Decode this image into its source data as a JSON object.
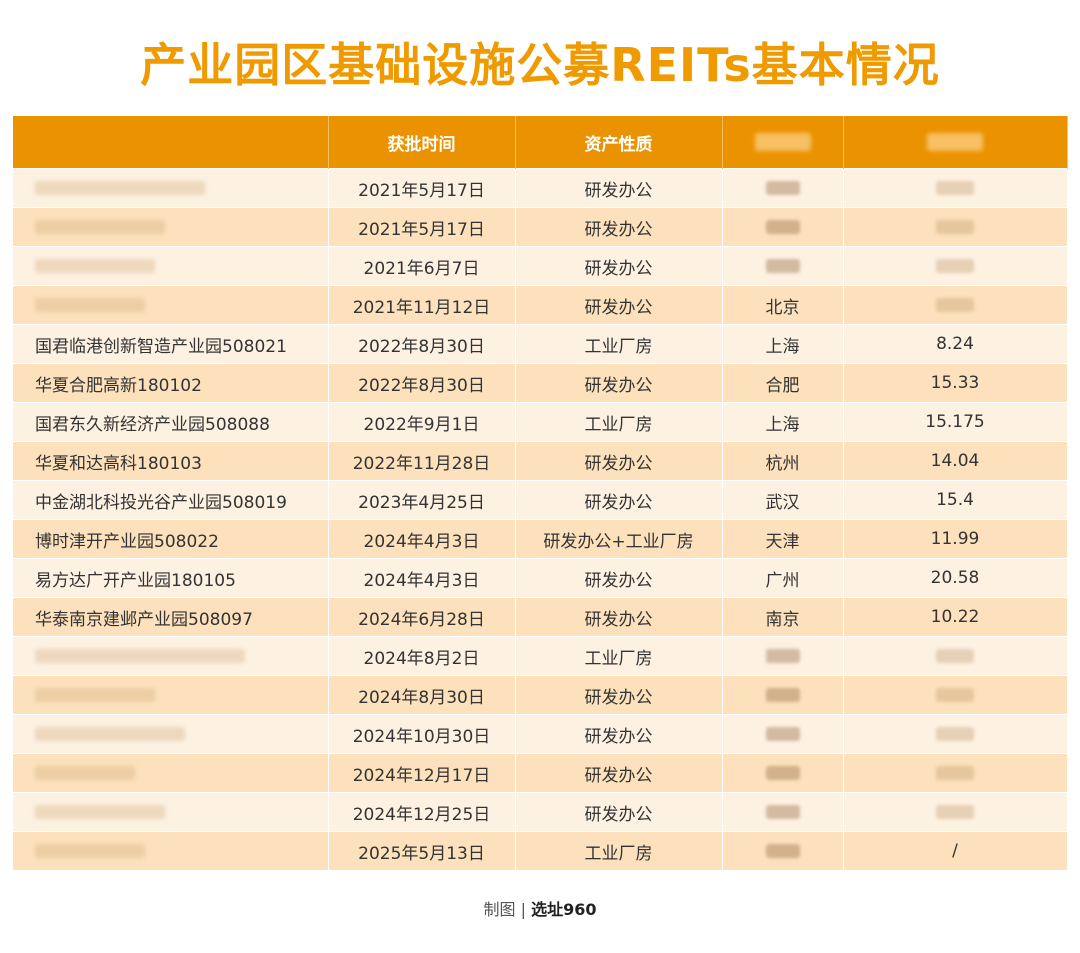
{
  "title": "产业园区基础设施公募REITs基本情况",
  "columns": [
    "",
    "获批时间",
    "资产性质",
    "",
    ""
  ],
  "rows": [
    {
      "name": "",
      "date": "2021年5月17日",
      "type": "研发办公",
      "city": "",
      "value": ""
    },
    {
      "name": "",
      "date": "2021年5月17日",
      "type": "研发办公",
      "city": "",
      "value": ""
    },
    {
      "name": "",
      "date": "2021年6月7日",
      "type": "研发办公",
      "city": "",
      "value": ""
    },
    {
      "name": "",
      "date": "2021年11月12日",
      "type": "研发办公",
      "city": "北京",
      "value": ""
    },
    {
      "name": "国君临港创新智造产业园508021",
      "date": "2022年8月30日",
      "type": "工业厂房",
      "city": "上海",
      "value": "8.24"
    },
    {
      "name": "华夏合肥高新180102",
      "date": "2022年8月30日",
      "type": "研发办公",
      "city": "合肥",
      "value": "15.33"
    },
    {
      "name": "国君东久新经济产业园508088",
      "date": "2022年9月1日",
      "type": "工业厂房",
      "city": "上海",
      "value": "15.175"
    },
    {
      "name": "华夏和达高科180103",
      "date": "2022年11月28日",
      "type": "研发办公",
      "city": "杭州",
      "value": "14.04"
    },
    {
      "name": "中金湖北科投光谷产业园508019",
      "date": "2023年4月25日",
      "type": "研发办公",
      "city": "武汉",
      "value": "15.4"
    },
    {
      "name": "博时津开产业园508022",
      "date": "2024年4月3日",
      "type": "研发办公+工业厂房",
      "city": "天津",
      "value": "11.99"
    },
    {
      "name": "易方达广开产业园180105",
      "date": "2024年4月3日",
      "type": "研发办公",
      "city": "广州",
      "value": "20.58"
    },
    {
      "name": "华泰南京建邺产业园508097",
      "date": "2024年6月28日",
      "type": "研发办公",
      "city": "南京",
      "value": "10.22"
    },
    {
      "name": "",
      "date": "2024年8月2日",
      "type": "工业厂房",
      "city": "",
      "value": ""
    },
    {
      "name": "",
      "date": "2024年8月30日",
      "type": "研发办公",
      "city": "",
      "value": ""
    },
    {
      "name": "",
      "date": "2024年10月30日",
      "type": "研发办公",
      "city": "",
      "value": ""
    },
    {
      "name": "",
      "date": "2024年12月17日",
      "type": "研发办公",
      "city": "",
      "value": ""
    },
    {
      "name": "",
      "date": "2024年12月25日",
      "type": "研发办公",
      "city": "",
      "value": ""
    },
    {
      "name": "",
      "date": "2025年5月13日",
      "type": "工业厂房",
      "city": "",
      "value": "/"
    }
  ],
  "footer": {
    "label": "制图 | ",
    "brand": "选址960"
  }
}
